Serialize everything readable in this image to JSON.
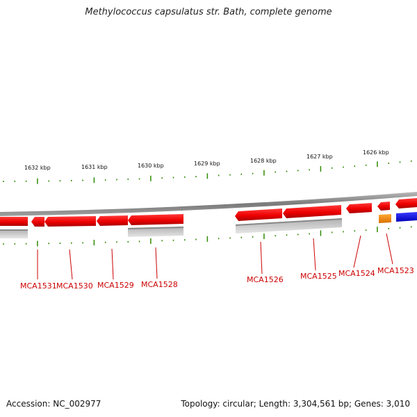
{
  "title": "Methylococcus capsulatus str. Bath, complete genome",
  "scale_labels": [
    "1632 kbp",
    "1631 kbp",
    "1630 kbp",
    "1629 kbp",
    "1628 kbp",
    "1627 kbp",
    "1626 kbp"
  ],
  "genes": [
    {
      "id": "MCA1531",
      "label": "MCA1531",
      "color": "#ff0000"
    },
    {
      "id": "MCA1530",
      "label": "MCA1530",
      "color": "#ff0000"
    },
    {
      "id": "MCA1529",
      "label": "MCA1529",
      "color": "#ff0000"
    },
    {
      "id": "MCA1528",
      "label": "MCA1528",
      "color": "#ff0000"
    },
    {
      "id": "MCA1526",
      "label": "MCA1526",
      "color": "#ff0000"
    },
    {
      "id": "MCA1525",
      "label": "MCA1525",
      "color": "#ff0000"
    },
    {
      "id": "MCA1524",
      "label": "MCA1524",
      "color": "#ff0000"
    },
    {
      "id": "MCA1523",
      "label": "MCA1523",
      "color": "#ff0000"
    }
  ],
  "colors": {
    "cds": "#ff0000",
    "orange_feature": "#ff8c00",
    "blue_feature": "#0000ff",
    "backbone": "#808080",
    "ticks": "#2e8b00",
    "label": "#cc0000"
  },
  "footer": {
    "accession": "Accession: NC_002977",
    "summary": "Topology: circular; Length: 3,304,561 bp; Genes: 3,010"
  }
}
